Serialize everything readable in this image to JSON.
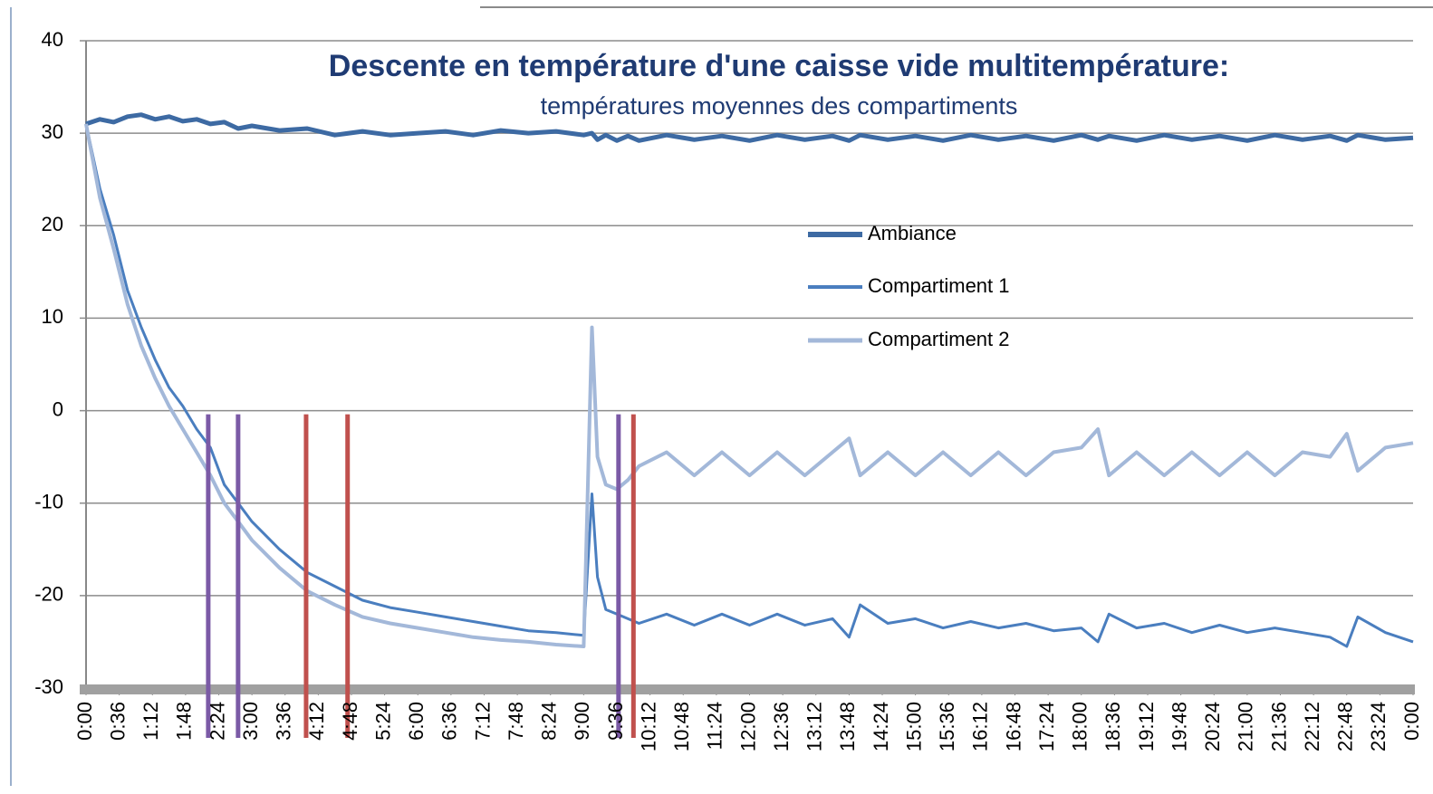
{
  "chart_data": {
    "type": "line",
    "title": "Descente en température d'une caisse vide multitempérature:",
    "subtitle": "températures moyennes des compartiments",
    "x": [
      0,
      0.25,
      0.5,
      0.75,
      1,
      1.25,
      1.5,
      1.75,
      2,
      2.25,
      2.5,
      2.75,
      3,
      3.5,
      4,
      4.5,
      5,
      5.5,
      6,
      6.5,
      7,
      7.5,
      8,
      8.5,
      9,
      9.15,
      9.25,
      9.4,
      9.6,
      9.8,
      10,
      10.5,
      11,
      11.5,
      12,
      12.5,
      13,
      13.5,
      13.8,
      14,
      14.5,
      15,
      15.5,
      16,
      16.5,
      17,
      17.5,
      18,
      18.3,
      18.5,
      19,
      19.5,
      20,
      20.5,
      21,
      21.5,
      22,
      22.5,
      22.8,
      23,
      23.5,
      24
    ],
    "series": [
      {
        "name": "Ambiance",
        "color": "#3d6aa3",
        "width": 5,
        "values": [
          31,
          31.5,
          31.2,
          31.8,
          32,
          31.5,
          31.8,
          31.3,
          31.5,
          31,
          31.2,
          30.5,
          30.8,
          30.3,
          30.5,
          29.8,
          30.2,
          29.8,
          30,
          30.2,
          29.8,
          30.3,
          30,
          30.2,
          29.8,
          30,
          29.3,
          29.8,
          29.2,
          29.7,
          29.2,
          29.8,
          29.3,
          29.7,
          29.2,
          29.8,
          29.3,
          29.7,
          29.2,
          29.8,
          29.3,
          29.7,
          29.2,
          29.8,
          29.3,
          29.7,
          29.2,
          29.8,
          29.3,
          29.7,
          29.2,
          29.8,
          29.3,
          29.7,
          29.2,
          29.8,
          29.3,
          29.7,
          29.2,
          29.8,
          29.3,
          29.5
        ]
      },
      {
        "name": "Compartiment 1",
        "color": "#4a7ebf",
        "width": 3,
        "values": [
          31,
          24,
          19,
          13,
          9,
          5.5,
          2.5,
          0.5,
          -2,
          -4,
          -8,
          -10,
          -12,
          -15,
          -17.5,
          -19,
          -20.5,
          -21.3,
          -21.8,
          -22.3,
          -22.8,
          -23.3,
          -23.8,
          -24,
          -24.3,
          -9,
          -18,
          -21.5,
          -22,
          -22.5,
          -23,
          -22,
          -23.2,
          -22,
          -23.2,
          -22,
          -23.2,
          -22.5,
          -24.5,
          -21,
          -23,
          -22.5,
          -23.5,
          -22.8,
          -23.5,
          -23,
          -23.8,
          -23.5,
          -25,
          -22,
          -23.5,
          -23,
          -24,
          -23.2,
          -24,
          -23.5,
          -24,
          -24.5,
          -25.5,
          -22.3,
          -24,
          -25
        ]
      },
      {
        "name": "Compartiment 2",
        "color": "#a3b8d9",
        "width": 4,
        "values": [
          31,
          23,
          17.5,
          11.5,
          7,
          3.5,
          0.5,
          -2,
          -4.5,
          -7,
          -10,
          -12,
          -14,
          -17,
          -19.5,
          -21,
          -22.3,
          -23,
          -23.5,
          -24,
          -24.5,
          -24.8,
          -25,
          -25.3,
          -25.5,
          9,
          -5,
          -8,
          -8.5,
          -7.5,
          -6,
          -4.5,
          -7,
          -4.5,
          -7,
          -4.5,
          -7,
          -4.5,
          -3,
          -7,
          -4.5,
          -7,
          -4.5,
          -7,
          -4.5,
          -7,
          -4.5,
          -4,
          -2,
          -7,
          -4.5,
          -7,
          -4.5,
          -7,
          -4.5,
          -7,
          -4.5,
          -5,
          -2.5,
          -6.5,
          -4,
          -3.5
        ]
      }
    ],
    "xlim": [
      0,
      24
    ],
    "xticks": [
      {
        "value": 0,
        "label": "0:00"
      },
      {
        "value": 0.6,
        "label": "0:36"
      },
      {
        "value": 1.2,
        "label": "1:12"
      },
      {
        "value": 1.8,
        "label": "1:48"
      },
      {
        "value": 2.4,
        "label": "2:24"
      },
      {
        "value": 3,
        "label": "3:00"
      },
      {
        "value": 3.6,
        "label": "3:36"
      },
      {
        "value": 4.2,
        "label": "4:12"
      },
      {
        "value": 4.8,
        "label": "4:48"
      },
      {
        "value": 5.4,
        "label": "5:24"
      },
      {
        "value": 6,
        "label": "6:00"
      },
      {
        "value": 6.6,
        "label": "6:36"
      },
      {
        "value": 7.2,
        "label": "7:12"
      },
      {
        "value": 7.8,
        "label": "7:48"
      },
      {
        "value": 8.4,
        "label": "8:24"
      },
      {
        "value": 9,
        "label": "9:00"
      },
      {
        "value": 9.6,
        "label": "9:36"
      },
      {
        "value": 10.2,
        "label": "10:12"
      },
      {
        "value": 10.8,
        "label": "10:48"
      },
      {
        "value": 11.4,
        "label": "11:24"
      },
      {
        "value": 12,
        "label": "12:00"
      },
      {
        "value": 12.6,
        "label": "12:36"
      },
      {
        "value": 13.2,
        "label": "13:12"
      },
      {
        "value": 13.8,
        "label": "13:48"
      },
      {
        "value": 14.4,
        "label": "14:24"
      },
      {
        "value": 15,
        "label": "15:00"
      },
      {
        "value": 15.6,
        "label": "15:36"
      },
      {
        "value": 16.2,
        "label": "16:12"
      },
      {
        "value": 16.8,
        "label": "16:48"
      },
      {
        "value": 17.4,
        "label": "17:24"
      },
      {
        "value": 18,
        "label": "18:00"
      },
      {
        "value": 18.6,
        "label": "18:36"
      },
      {
        "value": 19.2,
        "label": "19:12"
      },
      {
        "value": 19.8,
        "label": "19:48"
      },
      {
        "value": 20.4,
        "label": "20:24"
      },
      {
        "value": 21,
        "label": "21:00"
      },
      {
        "value": 21.6,
        "label": "21:36"
      },
      {
        "value": 22.2,
        "label": "22:12"
      },
      {
        "value": 22.8,
        "label": "22:48"
      },
      {
        "value": 23.4,
        "label": "23:24"
      },
      {
        "value": 24,
        "label": "0:00"
      }
    ],
    "ylim": [
      -30,
      40
    ],
    "yticks": [
      -30,
      -20,
      -10,
      0,
      10,
      20,
      30,
      40
    ],
    "grid": true,
    "markers": [
      {
        "x": 2.21,
        "color": "#7b5aa6"
      },
      {
        "x": 2.75,
        "color": "#7b5aa6"
      },
      {
        "x": 3.98,
        "color": "#c0504d"
      },
      {
        "x": 4.73,
        "color": "#c0504d"
      },
      {
        "x": 9.63,
        "color": "#7b5aa6"
      },
      {
        "x": 9.9,
        "color": "#c0504d"
      }
    ]
  }
}
